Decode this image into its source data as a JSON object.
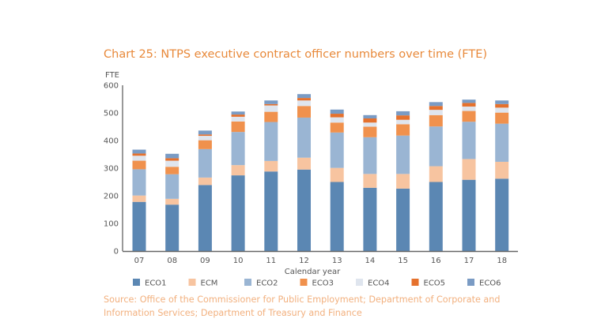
{
  "chart_data": {
    "type": "stacked-bar",
    "title": "Chart 25: NTPS executive contract officer numbers over time (FTE)",
    "xlabel": "Calendar year",
    "ylabel": "FTE",
    "ylim": [
      0,
      600
    ],
    "yticks": [
      0,
      100,
      200,
      300,
      400,
      500,
      600
    ],
    "grid": false,
    "legend": "bottom",
    "categories": [
      "07",
      "08",
      "09",
      "10",
      "11",
      "12",
      "13",
      "14",
      "15",
      "16",
      "17",
      "18"
    ],
    "series": [
      {
        "name": "ECO1",
        "color": "#5b87b3",
        "values": [
          178,
          168,
          239,
          274,
          288,
          295,
          250,
          229,
          226,
          250,
          258,
          262
        ]
      },
      {
        "name": "ECM",
        "color": "#f7c4a0",
        "values": [
          23,
          21,
          27,
          37,
          38,
          43,
          51,
          50,
          53,
          57,
          75,
          61
        ]
      },
      {
        "name": "ECO2",
        "color": "#9ab5d3",
        "values": [
          95,
          89,
          103,
          120,
          141,
          145,
          128,
          133,
          139,
          144,
          135,
          138
        ]
      },
      {
        "name": "ECO3",
        "color": "#f0914d",
        "values": [
          31,
          27,
          32,
          38,
          37,
          42,
          36,
          38,
          41,
          41,
          39,
          40
        ]
      },
      {
        "name": "ECO4",
        "color": "#dfe5ee",
        "values": [
          18,
          22,
          16,
          17,
          23,
          20,
          19,
          15,
          16,
          19,
          16,
          18
        ]
      },
      {
        "name": "ECO5",
        "color": "#e5712d",
        "values": [
          8,
          9,
          5,
          8,
          5,
          9,
          13,
          15,
          16,
          14,
          13,
          13
        ]
      },
      {
        "name": "ECO6",
        "color": "#7a9bc4",
        "values": [
          14,
          16,
          14,
          11,
          13,
          14,
          15,
          12,
          15,
          14,
          12,
          13
        ]
      }
    ],
    "source": "Source: Office of the Commissioner for Public Employment; Department of Corporate and Information Services; Department of Treasury and Finance"
  }
}
